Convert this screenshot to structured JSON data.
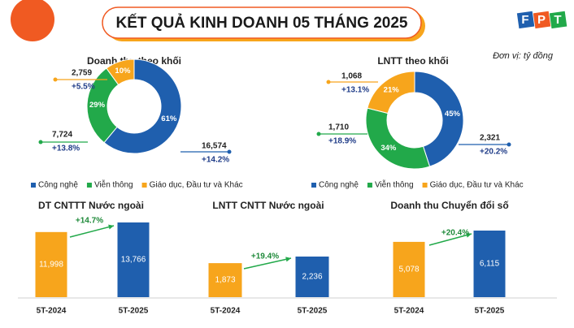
{
  "title": "KẾT QUẢ KINH DOANH 05 THÁNG 2025",
  "unit": "Đơn vị: tỷ đồng",
  "logo": [
    "F",
    "P",
    "T"
  ],
  "chart_data": [
    {
      "type": "pie",
      "title": "Doanh thu theo khối",
      "categories": [
        "Công nghệ",
        "Viễn thông",
        "Giáo dục, Đầu tư và Khác"
      ],
      "values": [
        61,
        29,
        10
      ],
      "value_labels": [
        "61%",
        "29%",
        "10%"
      ],
      "colors": [
        "#1f5fae",
        "#22a94a",
        "#f7a51c"
      ],
      "amounts": [
        "16,574",
        "7,724",
        "2,759"
      ],
      "growth": [
        "+14.2%",
        "+13.8%",
        "+5.5%"
      ]
    },
    {
      "type": "pie",
      "title": "LNTT theo khối",
      "categories": [
        "Công nghệ",
        "Viễn thông",
        "Giáo dục, Đầu tư và Khác"
      ],
      "values": [
        45,
        34,
        21
      ],
      "value_labels": [
        "45%",
        "34%",
        "21%"
      ],
      "colors": [
        "#1f5fae",
        "#22a94a",
        "#f7a51c"
      ],
      "amounts": [
        "2,321",
        "1,710",
        "1,068"
      ],
      "growth": [
        "+20.2%",
        "+18.9%",
        "+13.1%"
      ]
    },
    {
      "type": "bar",
      "title": "DT CNTTT Nước ngoài",
      "categories": [
        "5T-2024",
        "5T-2025"
      ],
      "values": [
        11998,
        13766
      ],
      "value_labels": [
        "11,998",
        "13,766"
      ],
      "colors": [
        "#f7a51c",
        "#1f5fae"
      ],
      "growth": "+14.7%"
    },
    {
      "type": "bar",
      "title": "LNTT CNTT Nước ngoài",
      "categories": [
        "5T-2024",
        "5T-2025"
      ],
      "values": [
        1873,
        2236
      ],
      "value_labels": [
        "1,873",
        "2,236"
      ],
      "colors": [
        "#f7a51c",
        "#1f5fae"
      ],
      "growth": "+19.4%"
    },
    {
      "type": "bar",
      "title": "Doanh thu Chuyển đổi số",
      "categories": [
        "5T-2024",
        "5T-2025"
      ],
      "values": [
        5078,
        6115
      ],
      "value_labels": [
        "5,078",
        "6,115"
      ],
      "colors": [
        "#f7a51c",
        "#1f5fae"
      ],
      "growth": "+20.4%"
    }
  ]
}
